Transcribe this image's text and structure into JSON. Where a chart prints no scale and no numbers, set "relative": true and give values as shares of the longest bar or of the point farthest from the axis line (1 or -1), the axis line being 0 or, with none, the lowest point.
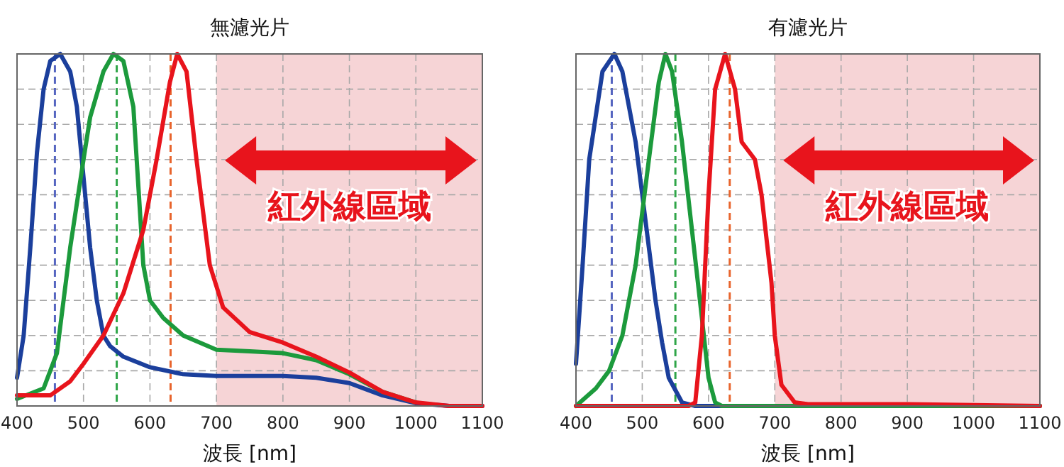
{
  "chart_data": [
    {
      "type": "line",
      "title": "無濾光片",
      "xlabel": "波長 [nm]",
      "relative": true,
      "xlim": [
        400,
        1100
      ],
      "xticks": [
        400,
        500,
        600,
        700,
        800,
        900,
        1000,
        1100
      ],
      "grid": true,
      "line_style": "solid",
      "marker": "none",
      "series": [
        {
          "color": "#1b3f9c",
          "x": [
            400,
            410,
            420,
            430,
            440,
            450,
            465,
            480,
            490,
            500,
            510,
            520,
            530,
            540,
            560,
            600,
            650,
            700,
            800,
            850,
            900,
            950,
            1000,
            1050,
            1100
          ],
          "values": [
            0.08,
            0.2,
            0.45,
            0.72,
            0.9,
            0.98,
            1.0,
            0.95,
            0.85,
            0.65,
            0.45,
            0.3,
            0.2,
            0.17,
            0.14,
            0.11,
            0.09,
            0.085,
            0.085,
            0.08,
            0.065,
            0.03,
            0.008,
            0.0,
            0.0
          ]
        },
        {
          "color": "#1c9a3c",
          "x": [
            400,
            440,
            460,
            480,
            500,
            510,
            530,
            545,
            560,
            575,
            585,
            590,
            600,
            620,
            650,
            700,
            750,
            800,
            850,
            900,
            950,
            1000
          ],
          "values": [
            0.02,
            0.05,
            0.15,
            0.45,
            0.7,
            0.82,
            0.95,
            1.0,
            0.98,
            0.85,
            0.55,
            0.4,
            0.3,
            0.25,
            0.2,
            0.16,
            0.155,
            0.15,
            0.13,
            0.09,
            0.04,
            0.01
          ]
        },
        {
          "color": "#e8141c",
          "x": [
            400,
            450,
            480,
            500,
            530,
            560,
            590,
            610,
            630,
            641,
            655,
            670,
            690,
            710,
            750,
            800,
            850,
            900,
            950,
            1000,
            1050,
            1100
          ],
          "values": [
            0.03,
            0.03,
            0.07,
            0.12,
            0.2,
            0.32,
            0.5,
            0.7,
            0.92,
            1.0,
            0.95,
            0.7,
            0.4,
            0.28,
            0.21,
            0.18,
            0.14,
            0.095,
            0.04,
            0.01,
            0.0,
            0.0
          ]
        }
      ],
      "ref_lines": [
        {
          "axis": "x",
          "value": 457,
          "color": "#5565c0",
          "line_style": "dashed"
        },
        {
          "axis": "x",
          "value": 550,
          "color": "#2fa548",
          "line_style": "dashed"
        },
        {
          "axis": "x",
          "value": 631,
          "color": "#e8642c",
          "line_style": "dashed"
        }
      ],
      "bands": [
        {
          "axis": "x",
          "from": 700,
          "to": 1100,
          "label": "紅外線區域",
          "color": "#f6d4d6"
        }
      ]
    },
    {
      "type": "line",
      "title": "有濾光片",
      "xlabel": "波長 [nm]",
      "relative": true,
      "xlim": [
        400,
        1100
      ],
      "xticks": [
        400,
        500,
        600,
        700,
        800,
        900,
        1000,
        1100
      ],
      "grid": true,
      "line_style": "solid",
      "marker": "none",
      "series": [
        {
          "color": "#1b3f9c",
          "x": [
            400,
            410,
            420,
            440,
            458,
            470,
            490,
            510,
            520,
            530,
            540,
            560,
            580,
            1100
          ],
          "values": [
            0.12,
            0.4,
            0.7,
            0.95,
            1.0,
            0.95,
            0.75,
            0.45,
            0.3,
            0.18,
            0.08,
            0.01,
            0.0,
            0.0
          ]
        },
        {
          "color": "#1c9a3c",
          "x": [
            400,
            430,
            450,
            470,
            490,
            510,
            525,
            535,
            545,
            560,
            575,
            590,
            600,
            610,
            620,
            1100
          ],
          "values": [
            0.0,
            0.05,
            0.1,
            0.2,
            0.4,
            0.7,
            0.92,
            1.0,
            0.95,
            0.75,
            0.5,
            0.25,
            0.08,
            0.01,
            0.0,
            0.0
          ]
        },
        {
          "color": "#e8141c",
          "x": [
            400,
            570,
            580,
            590,
            600,
            610,
            625,
            640,
            650,
            670,
            680,
            695,
            700,
            710,
            730,
            750,
            850,
            900,
            1100
          ],
          "values": [
            0.0,
            0.0,
            0.01,
            0.2,
            0.6,
            0.9,
            1.0,
            0.9,
            0.75,
            0.7,
            0.6,
            0.35,
            0.2,
            0.06,
            0.01,
            0.005,
            0.005,
            0.005,
            0.0
          ]
        }
      ],
      "ref_lines": [
        {
          "axis": "x",
          "value": 454,
          "color": "#5565c0",
          "line_style": "dashed"
        },
        {
          "axis": "x",
          "value": 550,
          "color": "#2fa548",
          "line_style": "dashed"
        },
        {
          "axis": "x",
          "value": 632,
          "color": "#e8642c",
          "line_style": "dashed"
        }
      ],
      "bands": [
        {
          "axis": "x",
          "from": 700,
          "to": 1100,
          "label": "紅外線區域",
          "color": "#f6d4d6"
        }
      ]
    }
  ]
}
